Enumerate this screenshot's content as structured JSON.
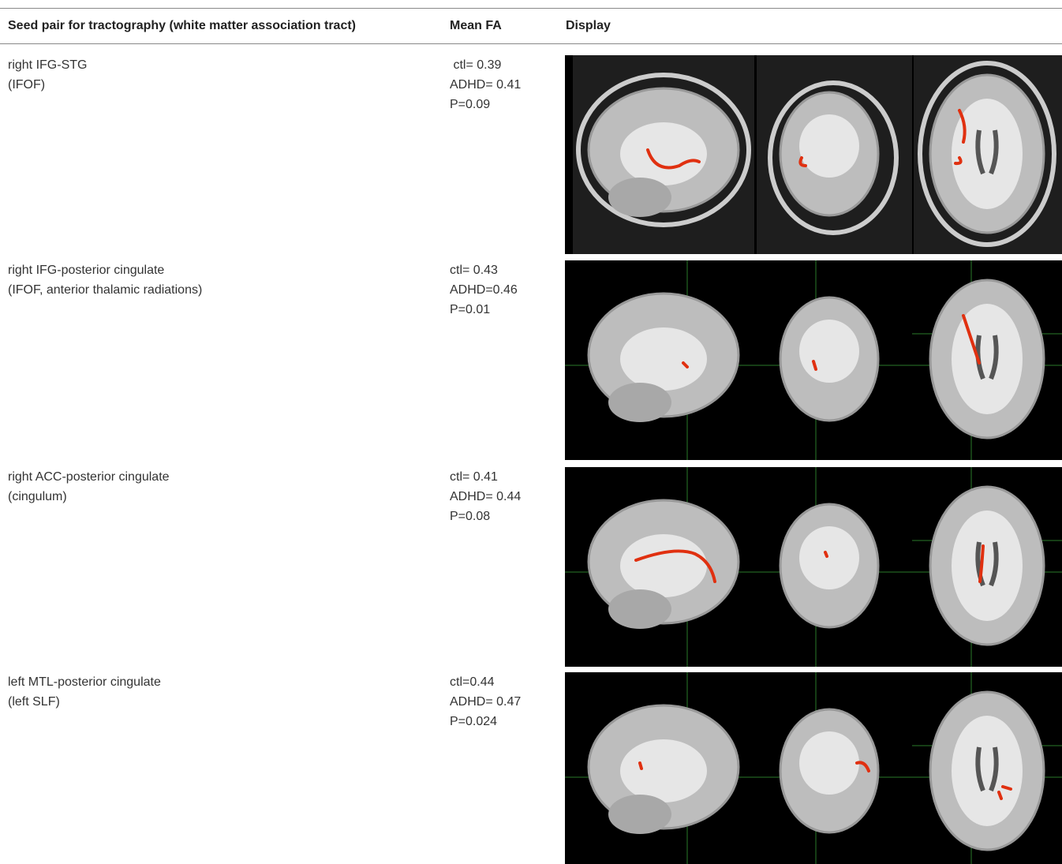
{
  "table": {
    "header": [
      "Seed pair for tractography (white matter association tract)",
      "Mean FA",
      "Display"
    ],
    "rows": [
      {
        "seed": [
          "right IFG-STG",
          "(IFOF)"
        ],
        "fa": [
          " ctl= 0.39",
          "ADHD= 0.41",
          "P=0.09"
        ]
      },
      {
        "seed": [
          "right IFG-posterior cingulate",
          "(IFOF, anterior thalamic radiations)"
        ],
        "fa": [
          "ctl= 0.43",
          "ADHD=0.46",
          "P=0.01"
        ]
      },
      {
        "seed": [
          "right ACC-posterior cingulate",
          "(cingulum)"
        ],
        "fa": [
          "ctl= 0.41",
          "ADHD= 0.44",
          "P=0.08"
        ]
      },
      {
        "seed": [
          "left MTL-posterior cingulate",
          "(left SLF)"
        ],
        "fa": [
          "ctl=0.44",
          "ADHD= 0.47",
          "P=0.024"
        ]
      }
    ]
  }
}
